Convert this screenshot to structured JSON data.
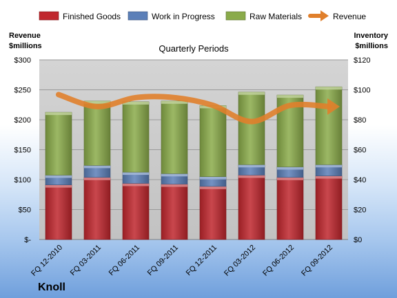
{
  "chart_data": {
    "type": "bar",
    "title": "Quarterly Periods",
    "company": "Knoll",
    "categories": [
      "FQ 12-2010",
      "FQ 03-2011",
      "FQ 06-2011",
      "FQ 09-2011",
      "FQ 12-2011",
      "FQ 03-2012",
      "FQ 06-2012",
      "FQ 09-2012"
    ],
    "series": [
      {
        "name": "Finished Goods",
        "color": "#c0272d",
        "axis": "right",
        "values": [
          36.5,
          41.5,
          37.5,
          37.0,
          35.5,
          43.0,
          41.5,
          42.5
        ]
      },
      {
        "name": "Work in Progress",
        "color": "#5b7fb8",
        "axis": "right",
        "values": [
          6.5,
          8.0,
          7.5,
          7.0,
          6.5,
          7.0,
          7.0,
          7.5
        ]
      },
      {
        "name": "Raw Materials",
        "color": "#8aab4a",
        "axis": "right",
        "values": [
          42.0,
          43.0,
          47.0,
          48.5,
          47.5,
          48.5,
          48.0,
          52.0
        ]
      }
    ],
    "line": {
      "name": "Revenue",
      "color": "#e07f2b",
      "axis": "left",
      "values": [
        242,
        222,
        237,
        237,
        224,
        197,
        224,
        222
      ]
    },
    "left_axis": {
      "title_line1": "Revenue",
      "title_line2": "$millions",
      "ticks": [
        "$-",
        "$50",
        "$100",
        "$150",
        "$200",
        "$250",
        "$300"
      ],
      "min": 0,
      "max": 300
    },
    "right_axis": {
      "title_line1": "Inventory",
      "title_line2": "$millions",
      "ticks": [
        "$0",
        "$20",
        "$40",
        "$60",
        "$80",
        "$100",
        "$120"
      ],
      "min": 0,
      "max": 120
    }
  }
}
